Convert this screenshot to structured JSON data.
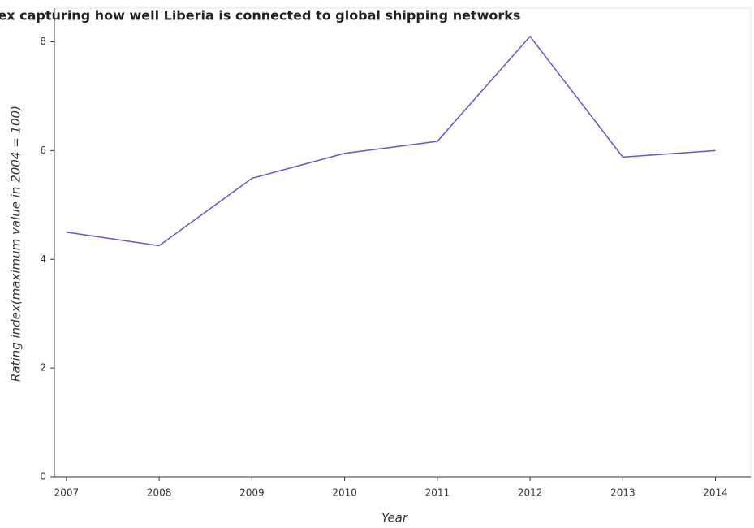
{
  "chart_data": {
    "type": "line",
    "title": "Index capturing how well Liberia is connected to global shipping networks",
    "x_label": "Year",
    "y_label": "Rating index(maximum value in 2004 = 100)",
    "x": [
      2007,
      2008,
      2009,
      2010,
      2011,
      2012,
      2013,
      2014
    ],
    "series": [
      {
        "name": "Liberia",
        "color": "#6257c8",
        "values": [
          4.5,
          4.25,
          5.49,
          5.95,
          6.17,
          8.1,
          5.88,
          6.0
        ]
      }
    ],
    "xlim": [
      2006.87,
      2014.38
    ],
    "xticks": [
      2007,
      2008,
      2009,
      2010,
      2011,
      2012,
      2013,
      2014
    ],
    "ylim": [
      0,
      8.62
    ],
    "yticks": [
      0,
      2,
      4,
      6,
      8
    ],
    "grid": false
  }
}
